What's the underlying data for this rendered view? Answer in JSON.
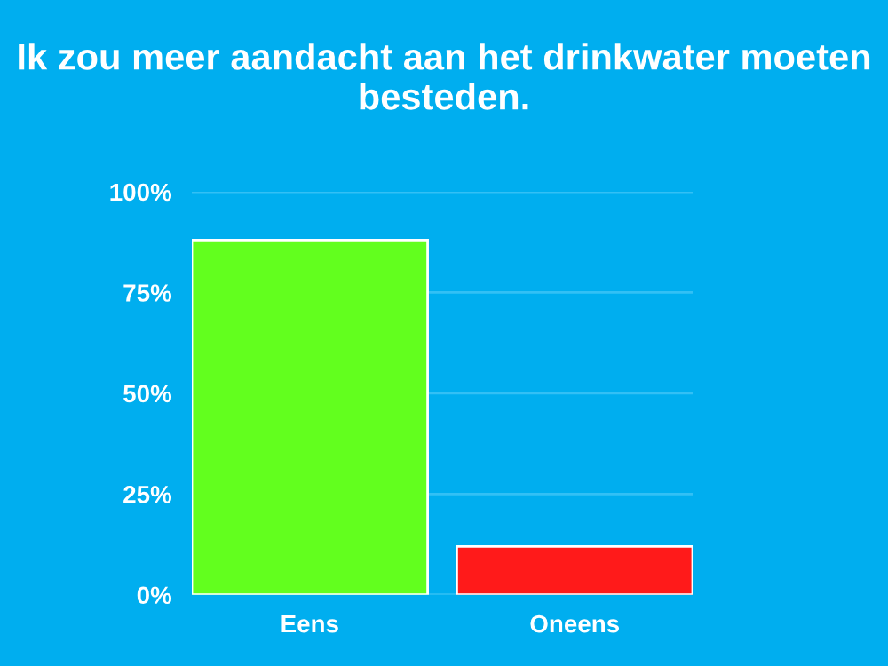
{
  "chart_data": {
    "type": "bar",
    "title": "Ik zou meer aandacht aan het drinkwater moeten besteden.",
    "categories": [
      "Eens",
      "Oneens"
    ],
    "values": [
      88,
      12
    ],
    "colors": [
      "#62ff1e",
      "#ff1a1a"
    ],
    "ylim": [
      0,
      100
    ],
    "yticks": [
      {
        "value": 0,
        "label": "0%"
      },
      {
        "value": 25,
        "label": "25%"
      },
      {
        "value": 50,
        "label": "50%"
      },
      {
        "value": 75,
        "label": "75%"
      },
      {
        "value": 100,
        "label": "100%"
      }
    ],
    "grid": "y",
    "legend": false
  }
}
